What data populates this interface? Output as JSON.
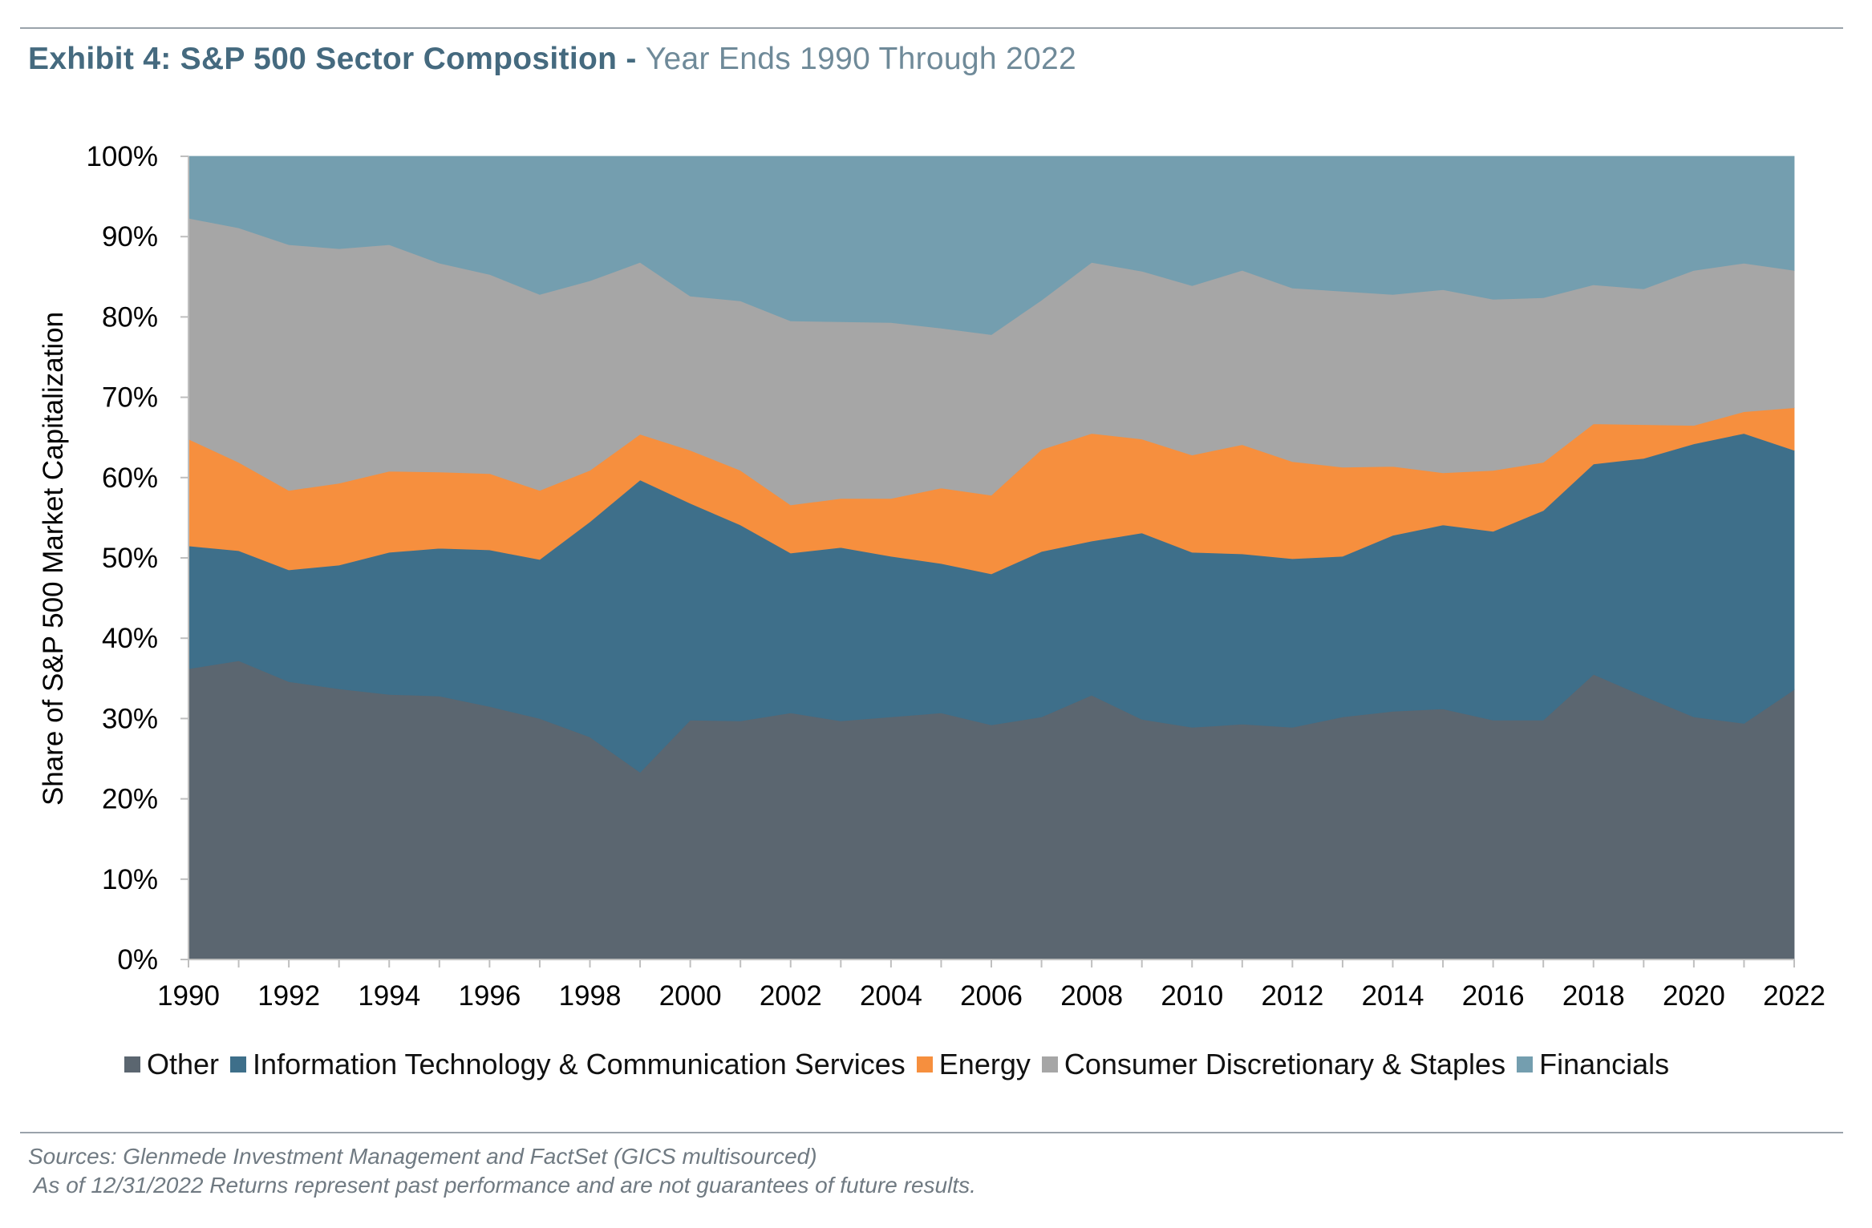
{
  "header": {
    "title_main": "Exhibit 4: S&P 500 Sector Composition",
    "title_sep": " - ",
    "title_sub": "Year Ends 1990 Through 2022"
  },
  "footer": {
    "source_line1": "Sources: Glenmede Investment Management and FactSet (GICS multisourced)",
    "source_line2": " As of 12/31/2022 Returns represent past performance and are not guarantees of future results."
  },
  "chart_data": {
    "type": "area",
    "stacked": true,
    "ylabel": "Share of S&P 500 Market Capitalization",
    "xlabel": "",
    "ylim": [
      0,
      100
    ],
    "y_ticks": [
      "0%",
      "10%",
      "20%",
      "30%",
      "40%",
      "50%",
      "60%",
      "70%",
      "80%",
      "90%",
      "100%"
    ],
    "x_tick_labels": [
      "1990",
      "1992",
      "1994",
      "1996",
      "1998",
      "2000",
      "2002",
      "2004",
      "2006",
      "2008",
      "2010",
      "2012",
      "2014",
      "2016",
      "2018",
      "2020",
      "2022"
    ],
    "legend_position": "bottom",
    "grid": false,
    "x": [
      1990,
      1991,
      1992,
      1993,
      1994,
      1995,
      1996,
      1997,
      1998,
      1999,
      2000,
      2001,
      2002,
      2003,
      2004,
      2005,
      2006,
      2007,
      2008,
      2009,
      2010,
      2011,
      2012,
      2013,
      2014,
      2015,
      2016,
      2017,
      2018,
      2019,
      2020,
      2021,
      2022
    ],
    "series": [
      {
        "name": "Other",
        "color": "#5b6670",
        "values": [
          36.2,
          37.2,
          34.6,
          33.7,
          33.0,
          32.8,
          31.5,
          30.0,
          27.7,
          23.3,
          29.8,
          29.7,
          30.7,
          29.7,
          30.2,
          30.7,
          29.2,
          30.2,
          32.9,
          29.9,
          28.9,
          29.3,
          28.9,
          30.2,
          30.9,
          31.2,
          29.8,
          29.8,
          35.5,
          32.8,
          30.2,
          29.4,
          33.6
        ]
      },
      {
        "name": "Information Technology & Communication Services",
        "color": "#3e6f8a",
        "values": [
          15.3,
          13.7,
          13.9,
          15.4,
          17.7,
          18.4,
          19.5,
          19.8,
          26.8,
          36.4,
          27.0,
          24.4,
          19.9,
          21.6,
          20.0,
          18.6,
          18.8,
          20.6,
          19.2,
          23.2,
          21.8,
          21.2,
          21.0,
          20.0,
          21.9,
          22.9,
          23.5,
          26.1,
          26.2,
          29.6,
          34.0,
          36.1,
          29.8
        ]
      },
      {
        "name": "Energy",
        "color": "#f68f3e",
        "values": [
          13.3,
          11.0,
          9.9,
          10.2,
          10.1,
          9.5,
          9.5,
          8.6,
          6.4,
          5.7,
          6.6,
          6.8,
          6.0,
          6.1,
          7.2,
          9.4,
          9.8,
          12.7,
          13.4,
          11.7,
          12.1,
          13.6,
          12.1,
          11.1,
          8.6,
          6.5,
          7.6,
          6.0,
          5.0,
          4.2,
          2.3,
          2.7,
          5.3
        ]
      },
      {
        "name": "Consumer Discretionary & Staples",
        "color": "#a6a6a6",
        "values": [
          27.5,
          29.2,
          30.6,
          29.2,
          28.2,
          26.0,
          24.8,
          24.4,
          23.6,
          21.4,
          19.2,
          21.1,
          22.9,
          22.0,
          21.9,
          19.9,
          20.0,
          18.6,
          21.3,
          20.9,
          21.1,
          21.7,
          21.6,
          21.9,
          21.4,
          22.8,
          21.3,
          20.5,
          17.3,
          16.9,
          19.3,
          18.5,
          17.1
        ]
      },
      {
        "name": "Financials",
        "color": "#749eaf",
        "values": [
          7.7,
          8.9,
          11.0,
          11.5,
          11.0,
          13.3,
          14.7,
          17.2,
          15.5,
          13.2,
          17.4,
          18.0,
          20.5,
          20.6,
          20.7,
          21.4,
          22.2,
          17.9,
          13.2,
          14.3,
          16.1,
          14.2,
          16.4,
          16.8,
          17.2,
          16.6,
          17.8,
          17.6,
          16.0,
          16.5,
          14.2,
          13.3,
          14.2
        ]
      }
    ]
  }
}
